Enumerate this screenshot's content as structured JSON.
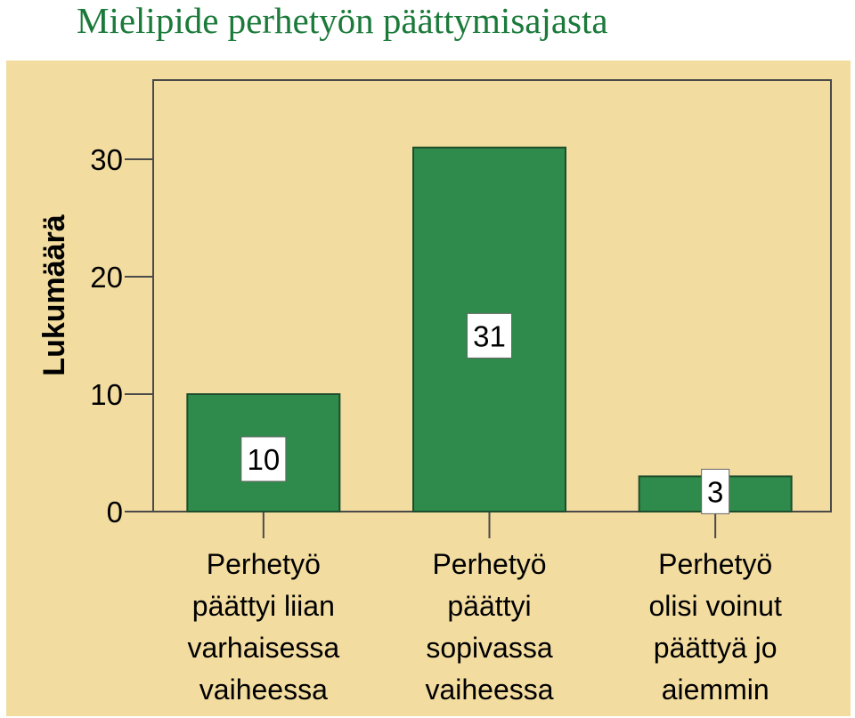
{
  "title": "Mielipide perhetyön päättymisajasta",
  "colors": {
    "title": "#1b7a3a",
    "panel_bg": "#f2dc9f",
    "bar_fill": "#2e8b4b",
    "bar_stroke": "#1d4d2c",
    "axis": "#4a4a4a",
    "label_box": "#ffffff"
  },
  "chart_data": {
    "type": "bar",
    "title": "Mielipide perhetyön päättymisajasta",
    "xlabel": "",
    "ylabel": "Lukumäärä",
    "ylim": [
      0,
      36
    ],
    "yticks": [
      0,
      10,
      20,
      30
    ],
    "grid": false,
    "categories": [
      [
        "Perhetyö",
        "päättyi liian",
        "varhaisessa",
        "vaiheessa"
      ],
      [
        "Perhetyö",
        "päättyi",
        "sopivassa",
        "vaiheessa"
      ],
      [
        "Perhetyö",
        "olisi voinut",
        "päättyä jo",
        "aiemmin"
      ]
    ],
    "values": [
      10,
      31,
      3
    ],
    "data_labels": [
      "10",
      "31",
      "3"
    ]
  }
}
